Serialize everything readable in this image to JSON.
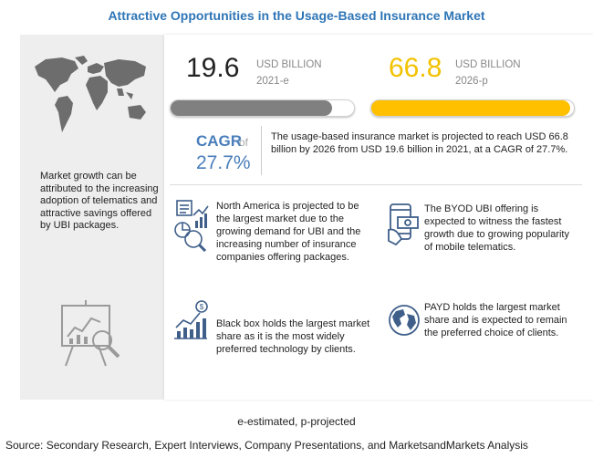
{
  "title": "Attractive Opportunities in the Usage-Based Insurance Market",
  "left_panel": {
    "text": "Market growth can be attributed to the increasing adoption  of telematics and attractive savings offered by UBI packages.",
    "map_icon": "world-map-icon",
    "chart_icon": "presentation-chart-icon"
  },
  "metrics": {
    "value_2021": "19.6",
    "unit_2021": "USD BILLION",
    "year_2021": "2021-e",
    "value_2026": "66.8",
    "unit_2026": "USD BILLION",
    "year_2026": "2026-p",
    "bar_2021_fill": 0.88,
    "bar_2026_fill": 0.98
  },
  "cagr": {
    "label": "CAGR",
    "of": "of",
    "value": "27.7%"
  },
  "summary": "The usage-based insurance market is projected to reach USD 66.8 billion by 2026 from USD 19.6 billion in 2021, at a CAGR of 27.7%.",
  "highlights": [
    {
      "icon": "growth-analysis-icon",
      "text": "North America  is projected to be the largest market due to the growing demand for UBI and the increasing number of insurance companies offering packages."
    },
    {
      "icon": "mobile-money-icon",
      "text": "The BYOD UBI offering is expected to witness the fastest growth due to growing popularity of mobile telematics."
    },
    {
      "icon": "bar-chart-dollar-icon",
      "text": "Black box holds the largest market share as it is the most widely preferred technology by clients."
    },
    {
      "icon": "globe-icon",
      "text": "PAYD holds the largest market share and is expected to remain the preferred choice of clients."
    }
  ],
  "colors": {
    "title": "#2e75b6",
    "bar_2021": "#808080",
    "bar_2026": "#ffc000",
    "value_2026": "#f2c200",
    "cagr": "#4a7ebb"
  },
  "footnote": "e-estimated, p-projected",
  "source": "Source: Secondary Research, Expert Interviews, Company Presentations, and MarketsandMarkets Analysis"
}
